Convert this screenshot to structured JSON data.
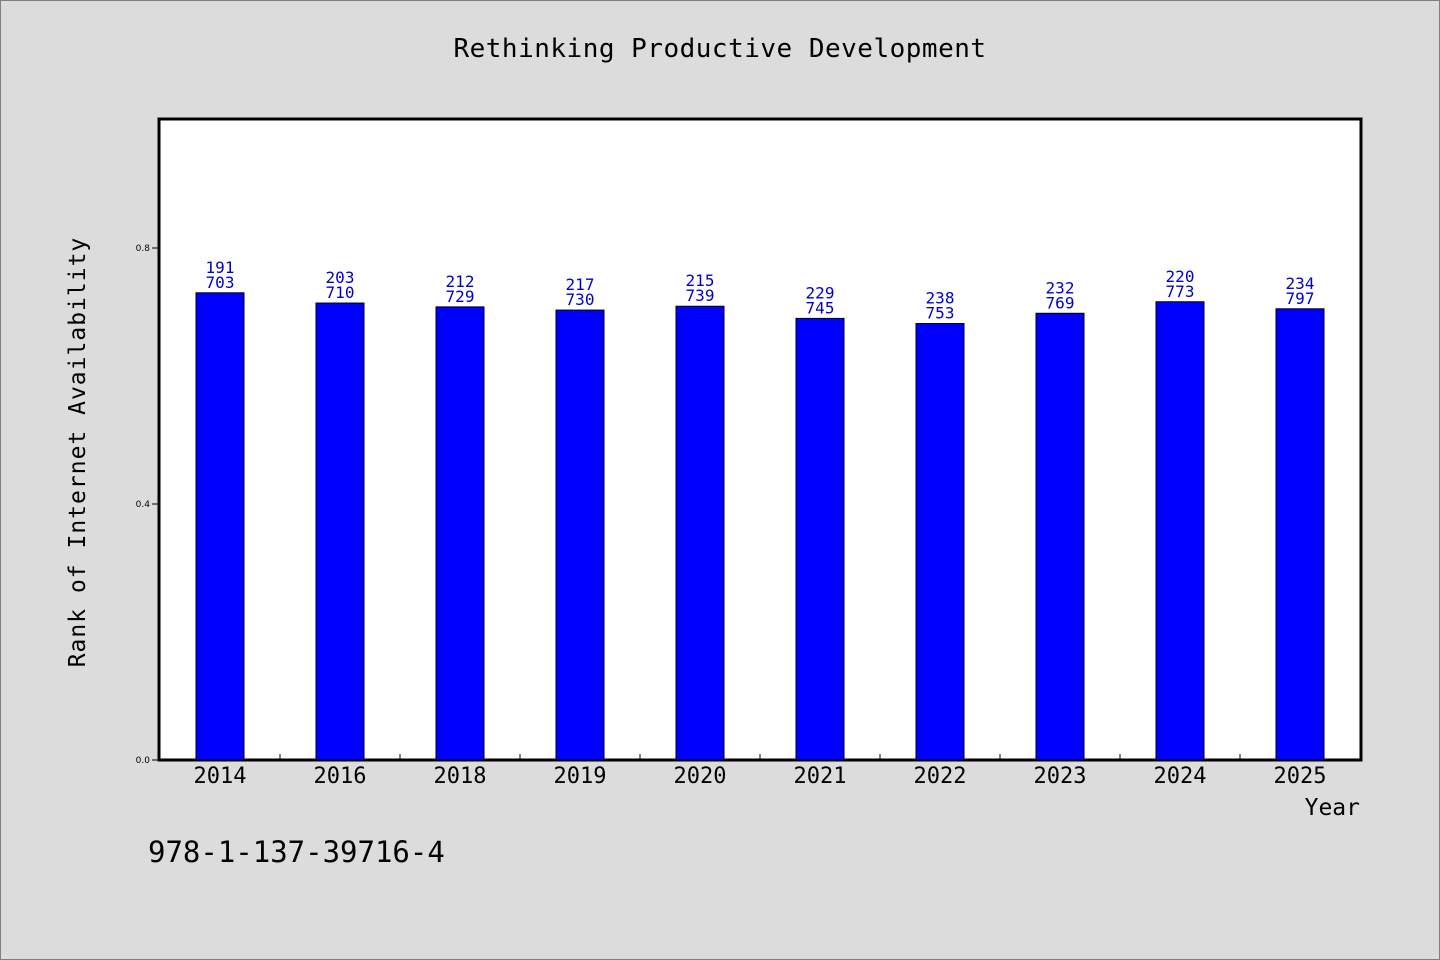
{
  "footer": {
    "isbn": "978-1-137-39716-4"
  },
  "chart_data": {
    "type": "bar",
    "title": "Rethinking Productive Development",
    "xlabel": "Year",
    "ylabel": "Rank of Internet Availability",
    "categories": [
      "2014",
      "2016",
      "2018",
      "2019",
      "2020",
      "2021",
      "2022",
      "2023",
      "2024",
      "2025"
    ],
    "series": [
      {
        "values": [
          0.73,
          0.714,
          0.708,
          0.703,
          0.709,
          0.69,
          0.682,
          0.698,
          0.716,
          0.705
        ],
        "color": "#0000ff",
        "labels_top": [
          "191",
          "203",
          "212",
          "217",
          "215",
          "229",
          "238",
          "232",
          "220",
          "234"
        ],
        "labels_bottom": [
          "703",
          "710",
          "729",
          "730",
          "739",
          "745",
          "753",
          "769",
          "773",
          "797"
        ]
      }
    ],
    "ylim": [
      0,
      1.0
    ],
    "yticks": [
      "0.0",
      "0.4",
      "0.8"
    ],
    "ytick_values": [
      0,
      0.4,
      0.8
    ],
    "grid": false,
    "label_color": "#0000cd",
    "background": "#dcdcdc",
    "plot_background": "#ffffff"
  }
}
